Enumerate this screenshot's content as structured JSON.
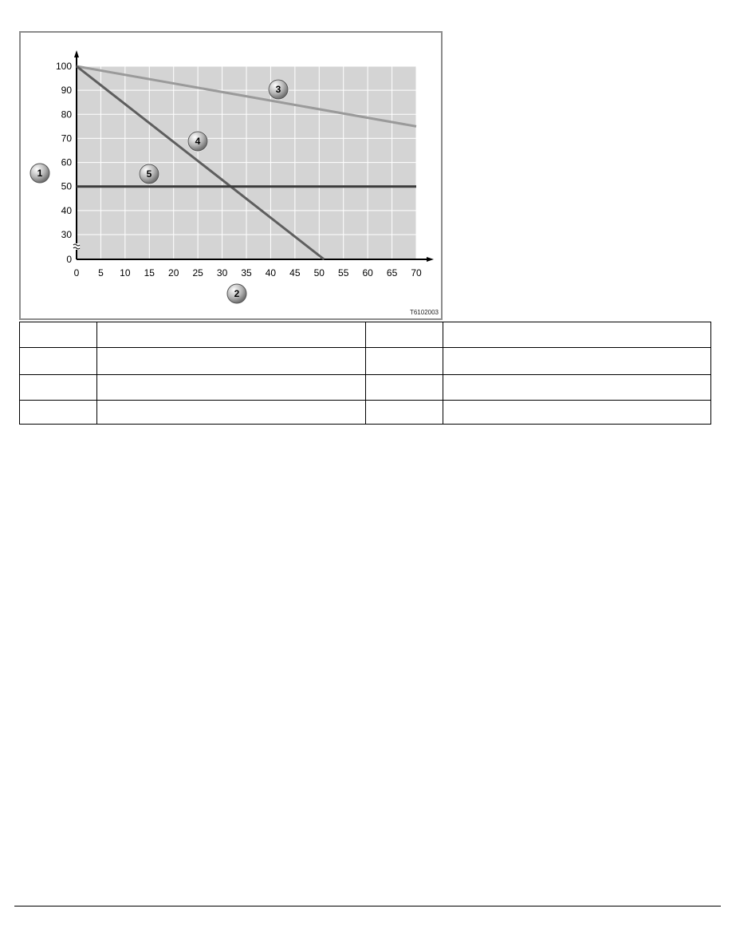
{
  "chart_data": {
    "type": "line",
    "title": "",
    "xlabel": "",
    "ylabel": "",
    "xlim": [
      0,
      70
    ],
    "x_ticks": [
      "0",
      "5",
      "10",
      "15",
      "20",
      "25",
      "30",
      "35",
      "40",
      "45",
      "50",
      "55",
      "60",
      "65",
      "70"
    ],
    "y_ticks": [
      "0",
      "30",
      "40",
      "50",
      "60",
      "70",
      "80",
      "90",
      "100"
    ],
    "y_axis_break": "between 0 and 30",
    "grid": true,
    "series": [
      {
        "callout": "3",
        "color": "#9a9a9a",
        "points": [
          [
            0,
            100
          ],
          [
            70,
            75
          ]
        ]
      },
      {
        "callout": "4",
        "color": "#5e5e5e",
        "points": [
          [
            0,
            100
          ],
          [
            51,
            0
          ]
        ]
      },
      {
        "callout": "5",
        "color": "#3c3c3c",
        "points": [
          [
            0,
            50
          ],
          [
            70,
            50
          ]
        ]
      }
    ],
    "callouts": {
      "y_axis": "1",
      "x_axis": "2",
      "series_3": "3",
      "series_4": "4",
      "series_5": "5"
    },
    "plot_background": "#d4d4d4",
    "grid_color": "#ffffff"
  },
  "figure": {
    "image_code": "T6102003"
  },
  "table": {
    "rows": 4,
    "columns": 4
  }
}
